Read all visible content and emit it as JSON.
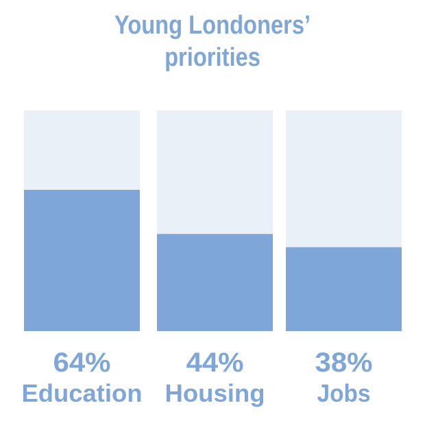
{
  "title_lines": [
    "Young Londoners’",
    "priorities"
  ],
  "colors": {
    "bar_fill": "#7ea6d9",
    "bar_track": "#eaf0f8",
    "text": "#7ea6d9"
  },
  "chart_data": {
    "type": "bar",
    "title": "Young Londoners’ priorities",
    "categories": [
      "Education",
      "Housing",
      "Jobs"
    ],
    "values": [
      64,
      44,
      38
    ],
    "value_labels": [
      "64%",
      "44%",
      "38%"
    ],
    "unit": "%",
    "ylim": [
      0,
      100
    ],
    "grid": false,
    "legend": "none"
  }
}
